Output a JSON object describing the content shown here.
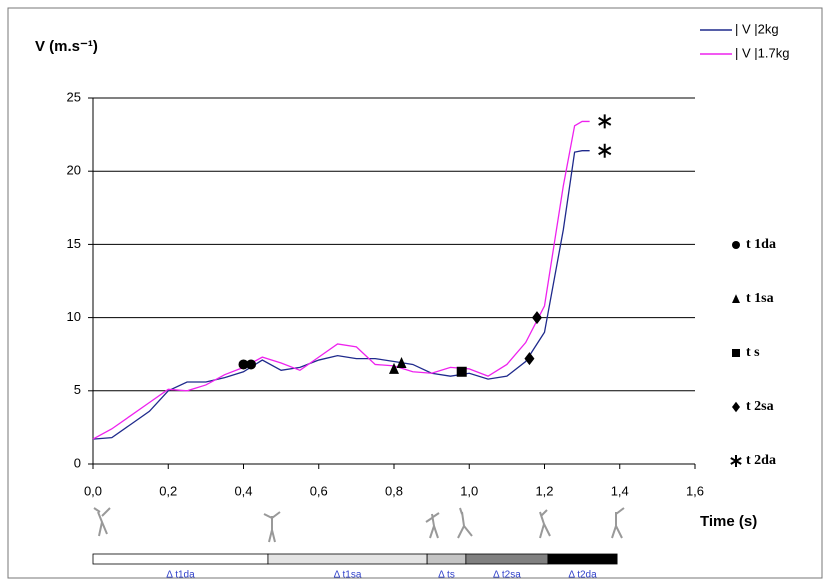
{
  "chart_data": {
    "type": "line",
    "y_label": "V (m.s⁻¹)",
    "x_label": "Time (s)",
    "xlim": [
      0,
      1.6
    ],
    "ylim": [
      0,
      25
    ],
    "xticks": [
      {
        "value": 0,
        "label": "0,0"
      },
      {
        "value": 0.2,
        "label": "0,2"
      },
      {
        "value": 0.4,
        "label": "0,4"
      },
      {
        "value": 0.6,
        "label": "0,6"
      },
      {
        "value": 0.8,
        "label": "0,8"
      },
      {
        "value": 1.0,
        "label": "1,0"
      },
      {
        "value": 1.2,
        "label": "1,2"
      },
      {
        "value": 1.4,
        "label": "1,4"
      },
      {
        "value": 1.6,
        "label": "1,6"
      }
    ],
    "yticks": [
      0,
      5,
      10,
      15,
      20,
      25
    ],
    "grid": true,
    "x": [
      0,
      0.05,
      0.1,
      0.15,
      0.2,
      0.25,
      0.3,
      0.35,
      0.4,
      0.45,
      0.5,
      0.55,
      0.6,
      0.65,
      0.7,
      0.75,
      0.8,
      0.85,
      0.9,
      0.95,
      1.0,
      1.05,
      1.1,
      1.15,
      1.2,
      1.25,
      1.28,
      1.3,
      1.32
    ],
    "series": [
      {
        "name": "| V |2kg",
        "color": "#1f2a8c",
        "values": [
          1.7,
          1.8,
          2.7,
          3.6,
          5.0,
          5.6,
          5.6,
          5.9,
          6.3,
          7.1,
          6.4,
          6.6,
          7.1,
          7.4,
          7.2,
          7.2,
          7.0,
          6.8,
          6.2,
          6.0,
          6.2,
          5.8,
          6.0,
          7.0,
          9.0,
          16,
          21.3,
          21.4,
          21.4
        ]
      },
      {
        "name": "| V |1.7kg",
        "color": "#ee22ee",
        "values": [
          1.7,
          2.4,
          3.3,
          4.2,
          5.1,
          5.0,
          5.4,
          6.1,
          6.6,
          7.3,
          6.9,
          6.4,
          7.3,
          8.2,
          8.0,
          6.8,
          6.7,
          6.3,
          6.2,
          6.6,
          6.5,
          6.0,
          6.8,
          8.3,
          10.8,
          19,
          23.1,
          23.4,
          23.4
        ]
      }
    ],
    "events": [
      {
        "name": "t 1da",
        "symbol": "circle",
        "x": [
          0.4,
          0.42
        ],
        "y": [
          6.8,
          6.8
        ]
      },
      {
        "name": "t 1sa",
        "symbol": "triangle",
        "x": [
          0.8,
          0.82
        ],
        "y": [
          6.5,
          6.9
        ]
      },
      {
        "name": "t s",
        "symbol": "square",
        "x": [
          0.98
        ],
        "y": [
          6.3
        ]
      },
      {
        "name": "t 2sa",
        "symbol": "diamond",
        "x": [
          1.16,
          1.18
        ],
        "y": [
          7.2,
          10.0
        ]
      },
      {
        "name": "t 2da",
        "symbol": "asterisk",
        "x": [
          1.36,
          1.36
        ],
        "y": [
          23.4,
          21.4
        ]
      }
    ],
    "phases": [
      {
        "name": "Δ t1da",
        "start": 0,
        "end": 0.465,
        "color": "#ffffff"
      },
      {
        "name": "Δ t1sa",
        "start": 0.465,
        "end": 0.888,
        "color": "#e4e4e4"
      },
      {
        "name": "Δ ts",
        "start": 0.888,
        "end": 0.991,
        "color": "#c4c4c4"
      },
      {
        "name": "Δ t2sa",
        "start": 0.991,
        "end": 1.209,
        "color": "#808080"
      },
      {
        "name": "Δ t2da",
        "start": 1.209,
        "end": 1.393,
        "color": "#000000"
      }
    ]
  }
}
